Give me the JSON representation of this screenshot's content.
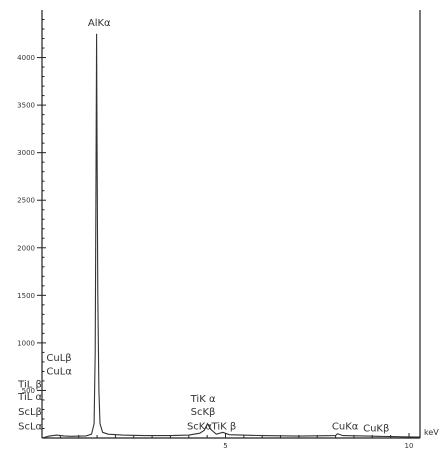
{
  "chart_data": {
    "type": "line",
    "xlabel": "keV",
    "xlim": [
      0,
      10.3
    ],
    "ylim": [
      0,
      4500
    ],
    "x_ticks": [
      5,
      10
    ],
    "x_tick_labels": [
      "5",
      "10"
    ],
    "y_ticks": [
      500,
      1000,
      1500,
      2000,
      2500,
      3000,
      3500,
      4000
    ],
    "y_tick_labels": [
      "500",
      "1000",
      "1500",
      "2000",
      "2500",
      "3000",
      "3500",
      "4000"
    ],
    "grid": false,
    "series": [
      {
        "values": [
          [
            0.0,
            0
          ],
          [
            0.2,
            20
          ],
          [
            0.4,
            30
          ],
          [
            0.6,
            22
          ],
          [
            0.8,
            18
          ],
          [
            1.0,
            20
          ],
          [
            1.2,
            22
          ],
          [
            1.35,
            40
          ],
          [
            1.42,
            150
          ],
          [
            1.45,
            900
          ],
          [
            1.47,
            2500
          ],
          [
            1.487,
            4250
          ],
          [
            1.5,
            3200
          ],
          [
            1.52,
            1500
          ],
          [
            1.55,
            500
          ],
          [
            1.58,
            150
          ],
          [
            1.65,
            60
          ],
          [
            1.8,
            40
          ],
          [
            2.2,
            30
          ],
          [
            2.8,
            25
          ],
          [
            3.5,
            25
          ],
          [
            4.0,
            30
          ],
          [
            4.3,
            50
          ],
          [
            4.42,
            80
          ],
          [
            4.51,
            150
          ],
          [
            4.6,
            90
          ],
          [
            4.75,
            40
          ],
          [
            4.93,
            60
          ],
          [
            5.1,
            35
          ],
          [
            6.0,
            25
          ],
          [
            7.0,
            20
          ],
          [
            8.0,
            25
          ],
          [
            8.05,
            45
          ],
          [
            8.2,
            25
          ],
          [
            8.9,
            20
          ],
          [
            9.5,
            15
          ],
          [
            10.0,
            12
          ],
          [
            10.3,
            10
          ]
        ]
      }
    ],
    "annotations": [
      {
        "text": "AlKα",
        "x": 1.25,
        "y": 4330
      },
      {
        "text": "CuLβ",
        "x": 0.12,
        "y": 810
      },
      {
        "text": "CuLα",
        "x": 0.12,
        "y": 670
      },
      {
        "text": "TiL β",
        "x": -0.65,
        "y": 530
      },
      {
        "text": "TiL α",
        "x": -0.65,
        "y": 400
      },
      {
        "text": "ScLβ",
        "x": -0.65,
        "y": 240
      },
      {
        "text": "ScLα",
        "x": -0.65,
        "y": 90
      },
      {
        "text": "TiK α",
        "x": 4.05,
        "y": 380
      },
      {
        "text": "ScKβ",
        "x": 4.05,
        "y": 240
      },
      {
        "text": "ScKα",
        "x": 3.95,
        "y": 90
      },
      {
        "text": "TiK β",
        "x": 4.62,
        "y": 90
      },
      {
        "text": "CuKα",
        "x": 7.9,
        "y": 90
      },
      {
        "text": "CuKβ",
        "x": 8.75,
        "y": 70
      }
    ]
  }
}
